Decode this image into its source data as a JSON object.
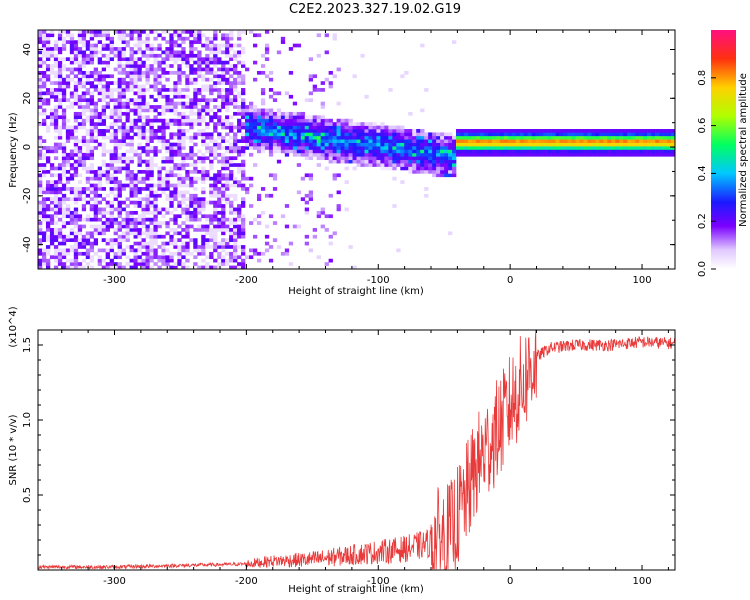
{
  "title": "C2E2.2023.327.19.02.G19",
  "chart_data": [
    {
      "type": "heatmap",
      "xlabel": "Height of straight line (km)",
      "ylabel": "Frequency (Hz)",
      "xlim": [
        -358,
        125
      ],
      "ylim": [
        -50,
        48
      ],
      "x_ticks": [
        -300,
        -200,
        -100,
        0,
        100
      ],
      "y_ticks": [
        -40,
        -20,
        0,
        20,
        40
      ],
      "colorbar": {
        "label": "Normalized spectral amplitude",
        "range": [
          0.0,
          1.0
        ],
        "ticks": [
          0.0,
          0.2,
          0.4,
          0.6,
          0.8
        ]
      },
      "features": [
        {
          "x_range": [
            -358,
            -200
          ],
          "freq_range": [
            -50,
            48
          ],
          "amplitude": 0.1
        },
        {
          "x_range": [
            -200,
            -40
          ],
          "freq_center": [
            8,
            -4
          ],
          "amplitude": 0.35
        },
        {
          "x_range": [
            -30,
            125
          ],
          "freq_center": 2,
          "amplitude": 0.9
        }
      ]
    },
    {
      "type": "line",
      "xlabel": "Height of straight line (km)",
      "ylabel": "SNR (10 * v/v)",
      "scale_label": "(x10^4)",
      "xlim": [
        -358,
        125
      ],
      "ylim": [
        0,
        1.6
      ],
      "x_ticks": [
        -300,
        -200,
        -100,
        0,
        100
      ],
      "y_ticks": [
        0.5,
        1.0,
        1.5
      ],
      "series": [
        {
          "color": "#e83a3a",
          "x": [
            -358,
            -300,
            -250,
            -200,
            -180,
            -150,
            -120,
            -100,
            -80,
            -60,
            -45,
            -35,
            -25,
            -15,
            -5,
            0,
            10,
            20,
            30,
            50,
            75,
            100,
            125
          ],
          "y": [
            0.02,
            0.02,
            0.03,
            0.04,
            0.06,
            0.07,
            0.1,
            0.12,
            0.14,
            0.18,
            0.25,
            0.45,
            0.7,
            0.85,
            1.0,
            1.1,
            1.25,
            1.42,
            1.48,
            1.5,
            1.5,
            1.52,
            1.51
          ]
        }
      ]
    }
  ]
}
